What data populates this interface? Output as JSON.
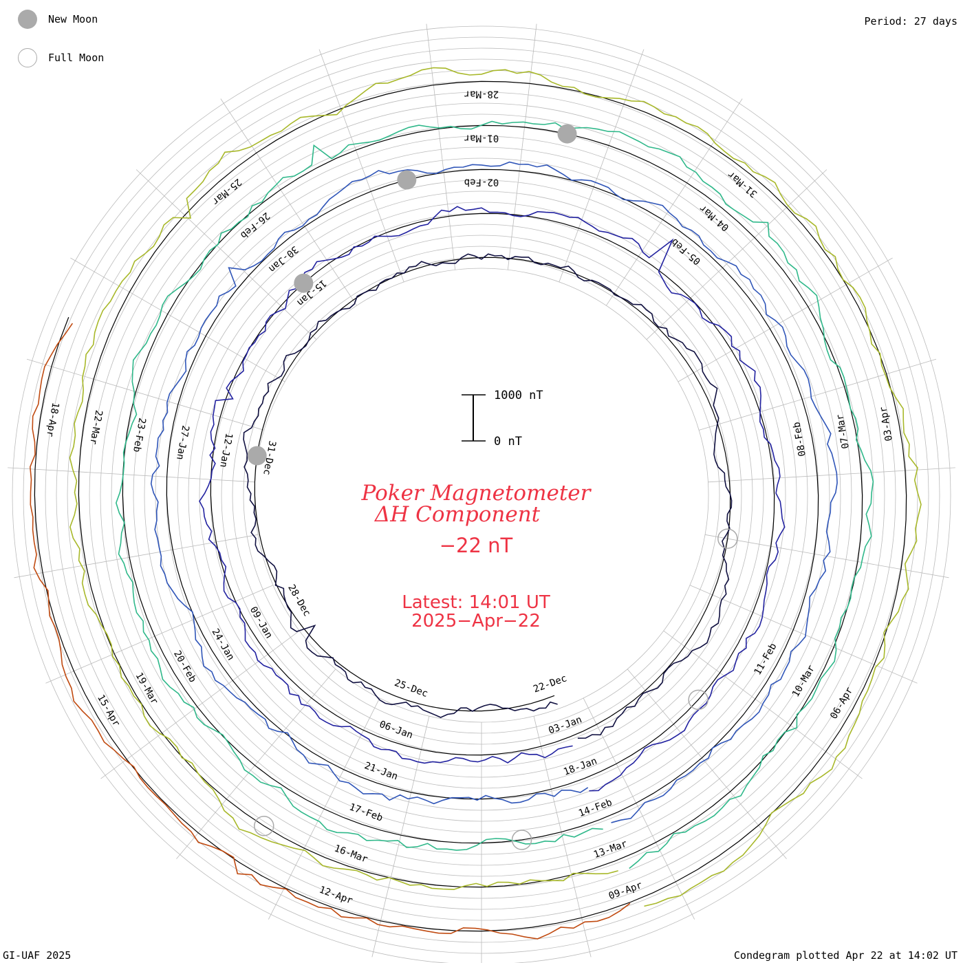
{
  "header": {
    "period": "Period: 27 days",
    "credit": "GI-UAF 2025",
    "plotted": "Condegram plotted Apr 22 at 14:02 UT"
  },
  "legend": [
    {
      "label": "New Moon",
      "symbol": "filled-circle",
      "color": "#aaaaaa"
    },
    {
      "label": "Full Moon",
      "symbol": "open-circle",
      "color": "#aaaaaa"
    }
  ],
  "chart_data": {
    "type": "line",
    "title_line1": "Poker Magnetometer",
    "title_line2": "ΔH Component",
    "current_value": "−22 nT",
    "latest_time": "Latest:  14:01 UT",
    "latest_date": "2025−Apr−22",
    "period_days": 27,
    "scale_bar": {
      "top_label": "1000 nT",
      "bottom_label": "0 nT",
      "value_nT": 1000
    },
    "rings": [
      {
        "cycle": 1,
        "color": "#101040",
        "labels": [
          "22-Dec",
          "25-Dec",
          "28-Dec",
          "31-Dec"
        ]
      },
      {
        "cycle": 2,
        "color": "#2222a0",
        "labels": [
          "03-Jan",
          "06-Jan",
          "09-Jan",
          "12-Jan",
          "15-Jan"
        ]
      },
      {
        "cycle": 3,
        "color": "#2f55b8",
        "labels": [
          "18-Jan",
          "21-Jan",
          "24-Jan",
          "27-Jan",
          "30-Jan",
          "02-Feb",
          "05-Feb",
          "08-Feb",
          "11-Feb"
        ]
      },
      {
        "cycle": 4,
        "color": "#2fb88a",
        "labels": [
          "14-Feb",
          "17-Feb",
          "20-Feb",
          "23-Feb",
          "26-Feb",
          "01-Mar",
          "04-Mar",
          "07-Mar",
          "10-Mar"
        ]
      },
      {
        "cycle": 5,
        "color": "#a8b82a",
        "labels": [
          "13-Mar",
          "16-Mar",
          "19-Mar",
          "22-Mar",
          "25-Mar",
          "28-Mar",
          "31-Mar",
          "03-Apr",
          "06-Apr"
        ]
      },
      {
        "cycle": 6,
        "color": "#c04a10",
        "labels": [
          "09-Apr",
          "12-Apr",
          "15-Apr",
          "18-Apr"
        ]
      }
    ],
    "new_moons": [
      "31-Dec",
      "30-Jan",
      "28-Feb",
      "29-Mar"
    ],
    "full_moons": [
      "13-Jan",
      "12-Feb",
      "14-Mar",
      "13-Apr"
    ],
    "colors": {
      "title": "#ee3344",
      "grid": "#bbbbbb",
      "baseline": "#000000",
      "moon": "#aaaaaa"
    }
  }
}
